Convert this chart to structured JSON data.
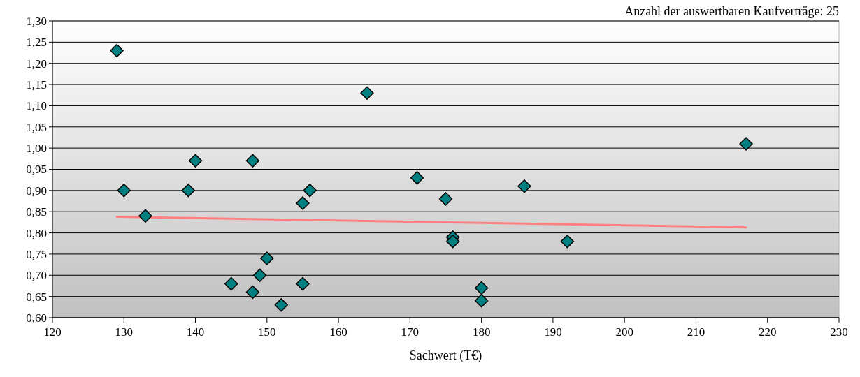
{
  "chart_data": {
    "type": "scatter",
    "title": "Anzahl der auswertbaren Kaufverträge: 25",
    "xlabel": "Sachwert (T€)",
    "xlim": [
      120,
      230
    ],
    "xticks": [
      120,
      130,
      140,
      150,
      160,
      170,
      180,
      190,
      200,
      210,
      220,
      230
    ],
    "ylim": [
      0.6,
      1.3
    ],
    "yticks": [
      {
        "value": 0.6,
        "label": "0,60"
      },
      {
        "value": 0.65,
        "label": "0,65"
      },
      {
        "value": 0.7,
        "label": "0,70"
      },
      {
        "value": 0.75,
        "label": "0,75"
      },
      {
        "value": 0.8,
        "label": "0,80"
      },
      {
        "value": 0.85,
        "label": "0,85"
      },
      {
        "value": 0.9,
        "label": "0,90"
      },
      {
        "value": 0.95,
        "label": "0,95"
      },
      {
        "value": 1.0,
        "label": "1,00"
      },
      {
        "value": 1.05,
        "label": "1,05"
      },
      {
        "value": 1.1,
        "label": "1,10"
      },
      {
        "value": 1.15,
        "label": "1,15"
      },
      {
        "value": 1.2,
        "label": "1,20"
      },
      {
        "value": 1.25,
        "label": "1,25"
      },
      {
        "value": 1.3,
        "label": "1,30"
      }
    ],
    "grid": "y",
    "series": [
      {
        "marker": "diamond",
        "color": "#008080",
        "x": [
          129,
          130,
          133,
          139,
          140,
          145,
          148,
          148,
          149,
          150,
          152,
          155,
          155,
          156,
          164,
          171,
          175,
          176,
          176,
          180,
          180,
          186,
          192,
          217
        ],
        "values": [
          1.23,
          0.9,
          0.84,
          0.9,
          0.97,
          0.68,
          0.97,
          0.66,
          0.7,
          0.74,
          0.63,
          0.87,
          0.68,
          0.9,
          1.13,
          0.93,
          0.88,
          0.79,
          0.78,
          0.67,
          0.64,
          0.91,
          0.78,
          1.01
        ]
      },
      {
        "type": "line",
        "color": "#ff8080",
        "x": [
          129,
          217
        ],
        "values": [
          0.838,
          0.813
        ]
      }
    ]
  }
}
